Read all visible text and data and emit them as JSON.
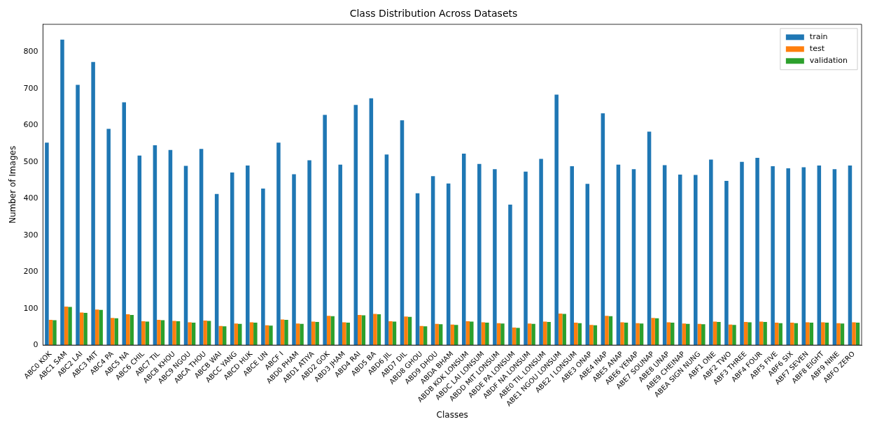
{
  "chart_data": {
    "type": "bar",
    "title": "Class Distribution Across Datasets",
    "xlabel": "Classes",
    "ylabel": "Number of Images",
    "categories": [
      "ABC0 KOK",
      "ABC1 SAM",
      "ABC2 LAI",
      "ABC3 MIT",
      "ABC4 PA",
      "ABC5 NA",
      "ABC6 CHIL",
      "ABC7 TIL",
      "ABC8 KHOU",
      "ABC9 NGOU",
      "ABCA THOU",
      "ABCB WAI",
      "ABCC YANG",
      "ABCD HUK",
      "ABCE UN",
      "ABCF I",
      "ABD0 PHAM",
      "ABD1 ATIYA",
      "ABD2 GOK",
      "ABD3 JHAM",
      "ABD4 RAI",
      "ABD5 BA",
      "ABD6 JIL",
      "ABD7 DIL",
      "ABD8 GHOU",
      "ABD9 DHOU",
      "ABDA BHAM",
      "ABDB KOK LONSUM",
      "ABDC LAI LONSUM",
      "ABDD MIT LONSUM",
      "ABDE PA LONSUM",
      "ABDF NA LONSUM",
      "ABE0 TIL LONSUM",
      "ABE1 NGOU LONSUM",
      "ABE2 I LONSUM",
      "ABE3 ONAP",
      "ABE4 INAP",
      "ABE5 ANAP",
      "ABE6 YENAP",
      "ABE7 SOUNAP",
      "ABE8 UNAP",
      "ABE9 CHEINAP",
      "ABEA SIGN NUNG",
      "ABF1 ONE",
      "ABF2 TWO",
      "ABF3 THREE",
      "ABF4 FOUR",
      "ABF5 FIVE",
      "ABF6 SIX",
      "ABF7 SEVEN",
      "ABF8 EIGHT",
      "ABF9 NINE",
      "ABFO ZERO"
    ],
    "series": [
      {
        "name": "train",
        "color": "#1f77b4",
        "values": [
          552,
          833,
          710,
          772,
          590,
          662,
          517,
          545,
          532,
          489,
          535,
          412,
          471,
          490,
          427,
          552,
          466,
          504,
          628,
          492,
          655,
          673,
          520,
          613,
          414,
          461,
          441,
          522,
          494,
          480,
          383,
          473,
          508,
          683,
          488,
          440,
          632,
          492,
          480,
          582,
          491,
          465,
          464,
          506,
          448,
          500,
          511,
          488,
          482,
          485,
          490,
          480,
          490
        ]
      },
      {
        "name": "test",
        "color": "#ff7f0e",
        "values": [
          69,
          105,
          89,
          97,
          74,
          84,
          65,
          69,
          66,
          62,
          67,
          52,
          59,
          62,
          54,
          70,
          59,
          64,
          80,
          62,
          82,
          85,
          65,
          78,
          52,
          58,
          56,
          65,
          62,
          60,
          48,
          59,
          64,
          86,
          61,
          55,
          80,
          62,
          60,
          74,
          62,
          59,
          58,
          64,
          56,
          63,
          64,
          61,
          61,
          62,
          62,
          60,
          62
        ]
      },
      {
        "name": "validation",
        "color": "#2ca02c",
        "values": [
          68,
          104,
          88,
          96,
          73,
          82,
          64,
          68,
          65,
          61,
          66,
          51,
          58,
          61,
          53,
          69,
          58,
          63,
          79,
          61,
          81,
          84,
          64,
          77,
          51,
          57,
          55,
          64,
          61,
          59,
          47,
          58,
          63,
          85,
          60,
          54,
          79,
          61,
          59,
          73,
          61,
          58,
          57,
          63,
          55,
          62,
          63,
          60,
          60,
          61,
          61,
          59,
          61
        ]
      }
    ],
    "ylim": [
      0,
      875
    ],
    "yticks": [
      0,
      100,
      200,
      300,
      400,
      500,
      600,
      700,
      800
    ],
    "grid": false,
    "legend": "top right"
  }
}
